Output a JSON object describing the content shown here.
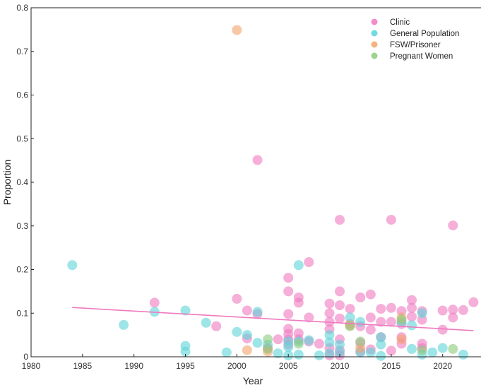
{
  "chart_data": {
    "type": "scatter",
    "title": "",
    "xlabel": "Year",
    "ylabel": "Proportion",
    "xlim": [
      1980,
      2024
    ],
    "ylim": [
      0,
      0.8
    ],
    "xticks": [
      1980,
      1985,
      1990,
      1995,
      2000,
      2005,
      2010,
      2015,
      2020
    ],
    "yticks": [
      0,
      0.1,
      0.2,
      0.3,
      0.4,
      0.5,
      0.6,
      0.7,
      0.8
    ],
    "grid": false,
    "legend_position": "top-right",
    "series": [
      {
        "name": "Clinic",
        "color": "#EF7AC0",
        "points": [
          [
            1992,
            0.124
          ],
          [
            1998,
            0.07
          ],
          [
            2000,
            0.133
          ],
          [
            2001,
            0.106
          ],
          [
            2001,
            0.042
          ],
          [
            2002,
            0.451
          ],
          [
            2002,
            0.098
          ],
          [
            2003,
            0.02
          ],
          [
            2004,
            0.04
          ],
          [
            2005,
            0.181
          ],
          [
            2005,
            0.15
          ],
          [
            2005,
            0.098
          ],
          [
            2005,
            0.064
          ],
          [
            2005,
            0.052
          ],
          [
            2005,
            0.04
          ],
          [
            2005,
            0.028
          ],
          [
            2006,
            0.136
          ],
          [
            2006,
            0.124
          ],
          [
            2006,
            0.054
          ],
          [
            2006,
            0.04
          ],
          [
            2007,
            0.217
          ],
          [
            2007,
            0.09
          ],
          [
            2007,
            0.035
          ],
          [
            2008,
            0.03
          ],
          [
            2009,
            0.122
          ],
          [
            2009,
            0.1
          ],
          [
            2009,
            0.08
          ],
          [
            2009,
            0.063
          ],
          [
            2009,
            0.02
          ],
          [
            2009,
            0.003
          ],
          [
            2010,
            0.314
          ],
          [
            2010,
            0.15
          ],
          [
            2010,
            0.118
          ],
          [
            2010,
            0.088
          ],
          [
            2010,
            0.04
          ],
          [
            2010,
            0.015
          ],
          [
            2010,
            0.003
          ],
          [
            2011,
            0.11
          ],
          [
            2011,
            0.075
          ],
          [
            2012,
            0.136
          ],
          [
            2012,
            0.07
          ],
          [
            2012,
            0.032
          ],
          [
            2012,
            0.012
          ],
          [
            2013,
            0.143
          ],
          [
            2013,
            0.09
          ],
          [
            2013,
            0.062
          ],
          [
            2013,
            0.017
          ],
          [
            2014,
            0.11
          ],
          [
            2014,
            0.08
          ],
          [
            2014,
            0.045
          ],
          [
            2015,
            0.314
          ],
          [
            2015,
            0.112
          ],
          [
            2015,
            0.08
          ],
          [
            2015,
            0.014
          ],
          [
            2016,
            0.105
          ],
          [
            2016,
            0.075
          ],
          [
            2016,
            0.045
          ],
          [
            2016,
            0.03
          ],
          [
            2017,
            0.13
          ],
          [
            2017,
            0.112
          ],
          [
            2017,
            0.092
          ],
          [
            2018,
            0.105
          ],
          [
            2018,
            0.085
          ],
          [
            2018,
            0.03
          ],
          [
            2018,
            0.02
          ],
          [
            2020,
            0.106
          ],
          [
            2020,
            0.062
          ],
          [
            2021,
            0.301
          ],
          [
            2021,
            0.108
          ],
          [
            2021,
            0.09
          ],
          [
            2022,
            0.107
          ],
          [
            2023,
            0.125
          ]
        ]
      },
      {
        "name": "General Population",
        "color": "#5DD4D8",
        "points": [
          [
            1984,
            0.21
          ],
          [
            1989,
            0.073
          ],
          [
            1992,
            0.103
          ],
          [
            1995,
            0.106
          ],
          [
            1995,
            0.025
          ],
          [
            1995,
            0.012
          ],
          [
            1997,
            0.078
          ],
          [
            1999,
            0.01
          ],
          [
            2000,
            0.057
          ],
          [
            2001,
            0.05
          ],
          [
            2002,
            0.103
          ],
          [
            2002,
            0.032
          ],
          [
            2003,
            0.028
          ],
          [
            2004,
            0.008
          ],
          [
            2005,
            0.035
          ],
          [
            2005,
            0.022
          ],
          [
            2005,
            0.003
          ],
          [
            2006,
            0.21
          ],
          [
            2006,
            0.035
          ],
          [
            2006,
            0.005
          ],
          [
            2007,
            0.038
          ],
          [
            2008,
            0.003
          ],
          [
            2009,
            0.05
          ],
          [
            2009,
            0.033
          ],
          [
            2009,
            0.008
          ],
          [
            2010,
            0.028
          ],
          [
            2010,
            0.01
          ],
          [
            2011,
            0.09
          ],
          [
            2012,
            0.08
          ],
          [
            2012,
            0.01
          ],
          [
            2013,
            0.01
          ],
          [
            2014,
            0.045
          ],
          [
            2014,
            0.028
          ],
          [
            2014,
            0.002
          ],
          [
            2016,
            0.08
          ],
          [
            2017,
            0.072
          ],
          [
            2017,
            0.018
          ],
          [
            2018,
            0.1
          ],
          [
            2018,
            0.005
          ],
          [
            2019,
            0.01
          ],
          [
            2020,
            0.02
          ],
          [
            2022,
            0.005
          ]
        ]
      },
      {
        "name": "FSW/Prisoner",
        "color": "#F4A36A",
        "points": [
          [
            2000,
            0.749
          ],
          [
            2001,
            0.015
          ],
          [
            2003,
            0.012
          ],
          [
            2011,
            0.072
          ],
          [
            2012,
            0.02
          ],
          [
            2016,
            0.09
          ],
          [
            2016,
            0.04
          ]
        ]
      },
      {
        "name": "Pregnant Women",
        "color": "#8CCB7C",
        "points": [
          [
            2003,
            0.04
          ],
          [
            2003,
            0.018
          ],
          [
            2006,
            0.03
          ],
          [
            2011,
            0.07
          ],
          [
            2012,
            0.035
          ],
          [
            2016,
            0.085
          ],
          [
            2018,
            0.015
          ],
          [
            2021,
            0.018
          ]
        ]
      }
    ],
    "trend_line": {
      "color": "#EF7AC0",
      "x": [
        1984,
        2023
      ],
      "y": [
        0.113,
        0.06
      ]
    }
  }
}
